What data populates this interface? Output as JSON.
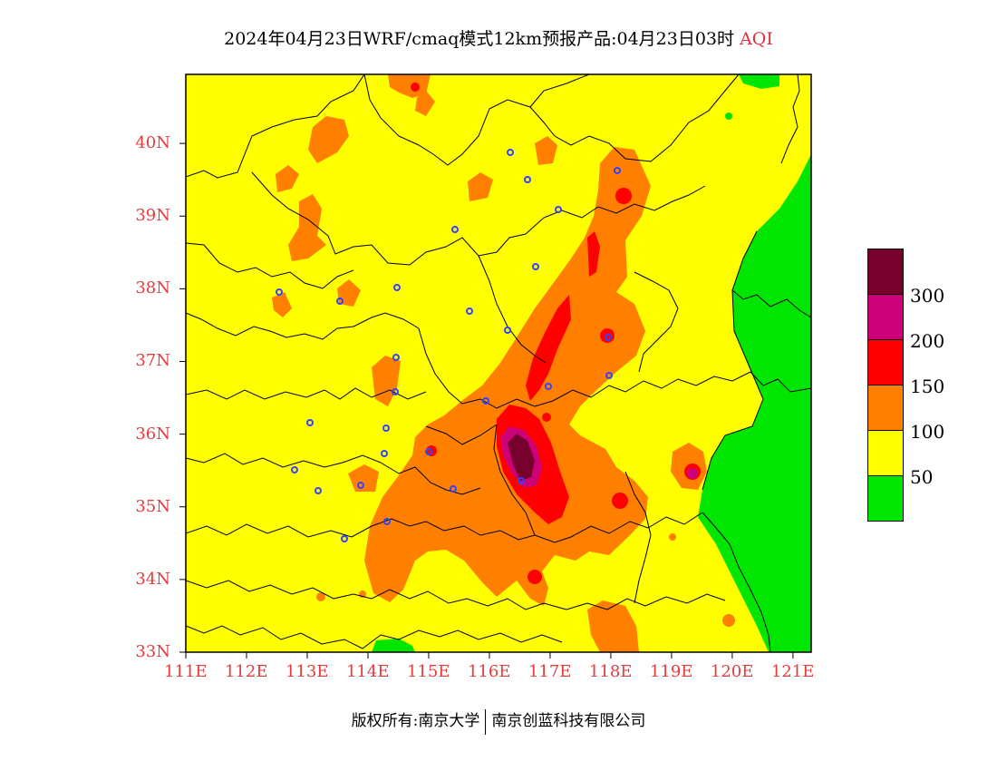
{
  "header": {
    "title_main": "2024年04月23日WRF/cmaq模式12km预报产品:04月23日03时",
    "title_variable": "AQI"
  },
  "axes": {
    "lat_labels": [
      "40N",
      "39N",
      "38N",
      "37N",
      "36N",
      "35N",
      "34N",
      "33N"
    ],
    "lat_values": [
      40,
      39,
      38,
      37,
      36,
      35,
      34,
      33
    ],
    "lon_labels": [
      "111E",
      "112E",
      "113E",
      "114E",
      "115E",
      "116E",
      "117E",
      "118E",
      "119E",
      "120E",
      "121E"
    ],
    "lon_values": [
      111,
      112,
      113,
      114,
      115,
      116,
      117,
      118,
      119,
      120,
      121
    ],
    "lon_range": [
      111,
      121.3
    ],
    "lat_range": [
      33,
      40.95
    ]
  },
  "legend": {
    "levels": [
      {
        "label": "",
        "color": "#78002d"
      },
      {
        "label": "300",
        "color": "#cc0077"
      },
      {
        "label": "200",
        "color": "#ff0000"
      },
      {
        "label": "150",
        "color": "#ff7f00"
      },
      {
        "label": "100",
        "color": "#ffff00"
      },
      {
        "label": "50",
        "color": "#00e600"
      }
    ]
  },
  "colors": {
    "good": "#00e600",
    "moderate": "#ffff00",
    "usg": "#ff7f00",
    "unhealthy": "#ff0000",
    "very_unhealthy": "#cc0077",
    "hazardous": "#78002d",
    "station": "#3344ff",
    "boundary": "#000000"
  },
  "footer": {
    "copyright": "版权所有:南京大学",
    "company": "南京创蓝科技有限公司"
  }
}
